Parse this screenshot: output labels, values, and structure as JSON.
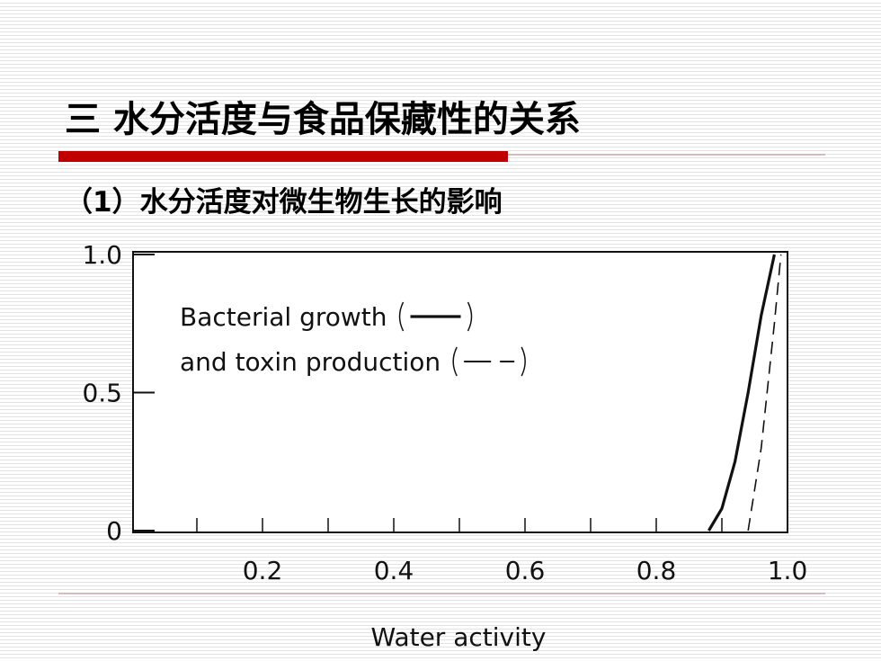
{
  "header": {
    "title": "三 水分活度与食品保藏性的关系",
    "subtitle": "（1）水分活度对微生物生长的影响"
  },
  "chart_data": {
    "type": "line",
    "xlabel": "Water activity",
    "xlim": [
      0,
      1
    ],
    "ylim": [
      0,
      1
    ],
    "xticks": [
      0.2,
      0.4,
      0.6,
      0.8,
      {
        "value": 1,
        "label": "1.0"
      }
    ],
    "minor_xticks": [
      0.1,
      0.3,
      0.5,
      0.7,
      0.9
    ],
    "yticks": [
      0,
      0.5,
      {
        "value": 1,
        "label": "1.0"
      }
    ],
    "x": [
      0.88,
      0.9,
      0.92,
      0.94,
      0.96,
      0.98,
      0.99
    ],
    "series": [
      {
        "name": "Bacterial growth",
        "color": "#111111",
        "dash": false,
        "values": [
          0,
          0.08,
          0.25,
          0.5,
          0.78,
          1.0,
          null
        ]
      },
      {
        "name": "and toxin production",
        "color": "#111111",
        "dash": true,
        "values": [
          null,
          null,
          null,
          0,
          0.3,
          0.75,
          1.0
        ]
      }
    ]
  }
}
